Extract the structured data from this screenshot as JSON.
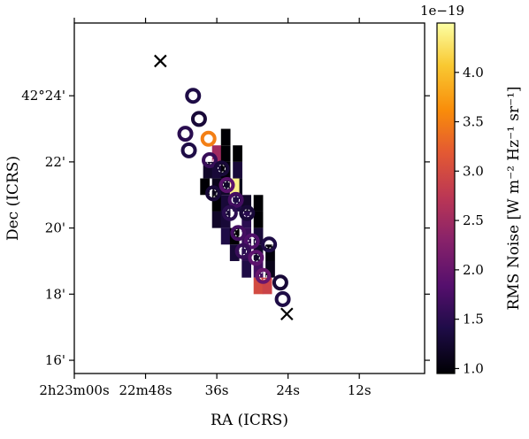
{
  "chart_data": {
    "type": "heatmap",
    "xlabel": "RA (ICRS)",
    "ylabel": "Dec (ICRS)",
    "xlim_seconds": [
      60,
      1
    ],
    "ylim_arcmin": [
      15.6,
      26.2
    ],
    "x_ticks": [
      {
        "value": 60,
        "label": "2h23m00s"
      },
      {
        "value": 48,
        "label": "22m48s"
      },
      {
        "value": 36,
        "label": "36s"
      },
      {
        "value": 24,
        "label": "24s"
      },
      {
        "value": 12,
        "label": "12s"
      }
    ],
    "y_ticks": [
      {
        "value": 24,
        "label": "42°24'"
      },
      {
        "value": 22,
        "label": "22'"
      },
      {
        "value": 20,
        "label": "20'"
      },
      {
        "value": 18,
        "label": "18'"
      },
      {
        "value": 16,
        "label": "16'"
      }
    ],
    "colorbar": {
      "label": "RMS Noise [W m⁻² Hz⁻¹ sr⁻¹]",
      "scale_label": "1e−19",
      "range": [
        0.95,
        4.5
      ],
      "ticks": [
        "1.0",
        "1.5",
        "2.0",
        "2.5",
        "3.0",
        "3.5",
        "4.0"
      ],
      "colormap": "inferno"
    },
    "cell_size": {
      "ra_s": 1.6,
      "dec_arcmin": 0.5
    },
    "cells": [
      {
        "ra": 36.0,
        "dec": 22.25,
        "v": 2.5
      },
      {
        "ra": 34.5,
        "dec": 22.25,
        "v": 0.95
      },
      {
        "ra": 32.5,
        "dec": 22.25,
        "v": 0.95
      },
      {
        "ra": 37.5,
        "dec": 21.75,
        "v": 1.2
      },
      {
        "ra": 36.0,
        "dec": 21.75,
        "v": 1.3
      },
      {
        "ra": 34.5,
        "dec": 21.75,
        "v": 1.0
      },
      {
        "ra": 32.5,
        "dec": 21.75,
        "v": 1.3
      },
      {
        "ra": 38.0,
        "dec": 21.25,
        "v": 0.95
      },
      {
        "ra": 36.0,
        "dec": 21.25,
        "v": 1.1
      },
      {
        "ra": 34.5,
        "dec": 21.25,
        "v": 1.2
      },
      {
        "ra": 32.5,
        "dec": 21.25,
        "v": 1.1
      },
      {
        "ra": 36.0,
        "dec": 20.75,
        "v": 0.95
      },
      {
        "ra": 34.5,
        "dec": 20.75,
        "v": 1.3
      },
      {
        "ra": 32.5,
        "dec": 20.75,
        "v": 1.4
      },
      {
        "ra": 31.0,
        "dec": 20.75,
        "v": 1.2
      },
      {
        "ra": 29.0,
        "dec": 20.75,
        "v": 0.95
      },
      {
        "ra": 36.0,
        "dec": 20.25,
        "v": 1.2
      },
      {
        "ra": 34.5,
        "dec": 20.25,
        "v": 1.3
      },
      {
        "ra": 31.0,
        "dec": 20.25,
        "v": 1.5
      },
      {
        "ra": 29.0,
        "dec": 20.25,
        "v": 0.95
      },
      {
        "ra": 34.5,
        "dec": 19.75,
        "v": 1.4
      },
      {
        "ra": 33.0,
        "dec": 19.75,
        "v": 0.95
      },
      {
        "ra": 31.0,
        "dec": 19.75,
        "v": 1.6
      },
      {
        "ra": 29.0,
        "dec": 19.75,
        "v": 1.3
      },
      {
        "ra": 33.0,
        "dec": 19.25,
        "v": 1.3
      },
      {
        "ra": 31.0,
        "dec": 19.25,
        "v": 1.5
      },
      {
        "ra": 29.0,
        "dec": 19.25,
        "v": 1.2
      },
      {
        "ra": 27.0,
        "dec": 19.25,
        "v": 1.0
      },
      {
        "ra": 31.0,
        "dec": 18.75,
        "v": 1.4
      },
      {
        "ra": 29.0,
        "dec": 18.75,
        "v": 1.7
      },
      {
        "ra": 27.0,
        "dec": 18.75,
        "v": 1.1
      },
      {
        "ra": 29.0,
        "dec": 18.25,
        "v": 3.0
      },
      {
        "ra": 27.5,
        "dec": 18.25,
        "v": 2.9
      },
      {
        "ra": 33.0,
        "dec": 21.25,
        "v": 4.4
      },
      {
        "ra": 34.5,
        "dec": 22.75,
        "v": 0.95
      }
    ],
    "beam_markers": [
      {
        "ra": 40.0,
        "dec": 24.0,
        "v": 1.4
      },
      {
        "ra": 39.0,
        "dec": 23.3,
        "v": 1.3
      },
      {
        "ra": 41.3,
        "dec": 22.85,
        "v": 1.5
      },
      {
        "ra": 37.4,
        "dec": 22.7,
        "v": 3.5
      },
      {
        "ra": 40.7,
        "dec": 22.35,
        "v": 1.4
      },
      {
        "ra": 37.2,
        "dec": 22.05,
        "v": 1.6
      },
      {
        "ra": 35.2,
        "dec": 21.8,
        "v": 1.3
      },
      {
        "ra": 34.3,
        "dec": 21.3,
        "v": 1.9
      },
      {
        "ra": 36.6,
        "dec": 21.05,
        "v": 1.3
      },
      {
        "ra": 32.8,
        "dec": 20.85,
        "v": 1.7
      },
      {
        "ra": 30.9,
        "dec": 20.45,
        "v": 1.3
      },
      {
        "ra": 33.8,
        "dec": 20.45,
        "v": 1.5
      },
      {
        "ra": 32.4,
        "dec": 19.85,
        "v": 1.7
      },
      {
        "ra": 30.1,
        "dec": 19.6,
        "v": 1.8
      },
      {
        "ra": 27.2,
        "dec": 19.5,
        "v": 1.4
      },
      {
        "ra": 31.6,
        "dec": 19.3,
        "v": 1.6
      },
      {
        "ra": 29.4,
        "dec": 19.1,
        "v": 1.9
      },
      {
        "ra": 28.2,
        "dec": 18.55,
        "v": 2.0
      },
      {
        "ra": 25.3,
        "dec": 18.35,
        "v": 1.3
      },
      {
        "ra": 24.9,
        "dec": 17.85,
        "v": 1.4
      }
    ],
    "cross_markers": [
      {
        "ra": 45.5,
        "dec": 25.05
      },
      {
        "ra": 24.2,
        "dec": 17.4
      }
    ]
  }
}
